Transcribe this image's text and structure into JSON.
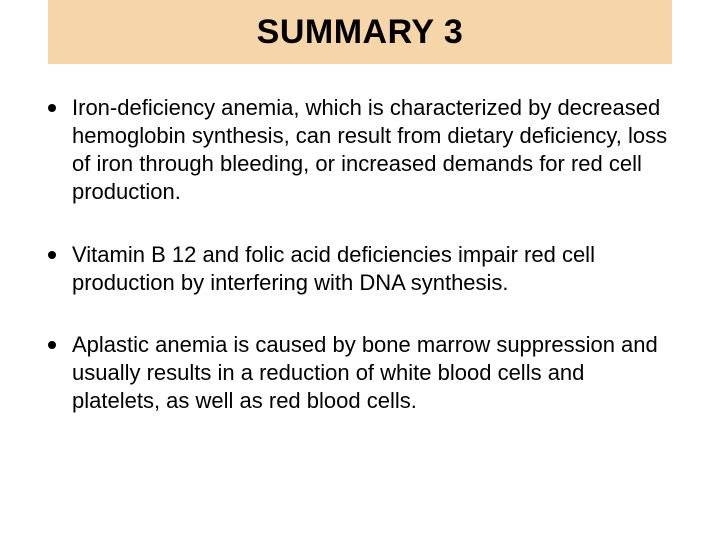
{
  "slide": {
    "title": "SUMMARY 3",
    "title_band_color": "#f6d5a8",
    "title_fontsize": 34,
    "title_color": "#000000",
    "background_color": "#ffffff",
    "bullets": [
      {
        "text": "Iron-deficiency anemia, which is characterized by decreased hemoglobin synthesis, can result from dietary deficiency, loss of iron through bleeding, or increased demands for red cell production."
      },
      {
        "text": "Vitamin B 12 and folic acid deficiencies impair red cell production by interfering with DNA synthesis."
      },
      {
        "text": "Aplastic anemia is caused by bone marrow suppression and usually results in a reduction of white blood cells and platelets, as well as red blood cells."
      }
    ],
    "bullet_fontsize": 22,
    "bullet_color": "#000000",
    "bullet_dot_color": "#000000"
  }
}
